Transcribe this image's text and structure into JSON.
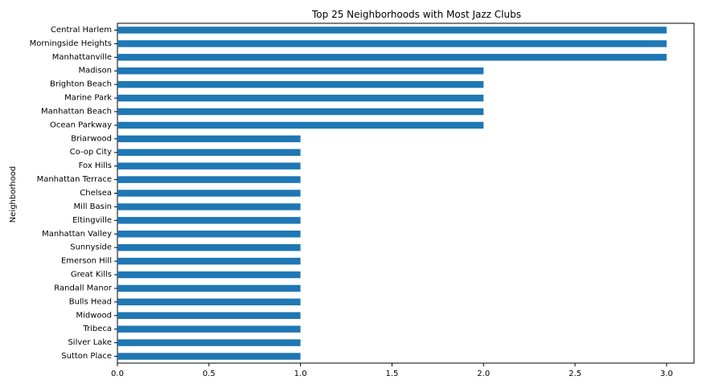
{
  "chart_data": {
    "type": "bar",
    "orientation": "horizontal",
    "title": "Top 25 Neighborhoods with Most Jazz Clubs",
    "xlabel": "",
    "ylabel": "Neighborhood",
    "categories": [
      "Central Harlem",
      "Morningside Heights",
      "Manhattanville",
      "Madison",
      "Brighton Beach",
      "Marine Park",
      "Manhattan Beach",
      "Ocean Parkway",
      "Briarwood",
      "Co-op City",
      "Fox Hills",
      "Manhattan Terrace",
      "Chelsea",
      "Mill Basin",
      "Eltingville",
      "Manhattan Valley",
      "Sunnyside",
      "Emerson Hill",
      "Great Kills",
      "Randall Manor",
      "Bulls Head",
      "Midwood",
      "Tribeca",
      "Silver Lake",
      "Sutton Place"
    ],
    "values": [
      3,
      3,
      3,
      2,
      2,
      2,
      2,
      2,
      1,
      1,
      1,
      1,
      1,
      1,
      1,
      1,
      1,
      1,
      1,
      1,
      1,
      1,
      1,
      1,
      1
    ],
    "xlim": [
      0,
      3.15
    ],
    "xticks": [
      "0.0",
      "0.5",
      "1.0",
      "1.5",
      "2.0",
      "2.5",
      "3.0"
    ],
    "grid": false,
    "bar_color": "#1f77b4"
  }
}
